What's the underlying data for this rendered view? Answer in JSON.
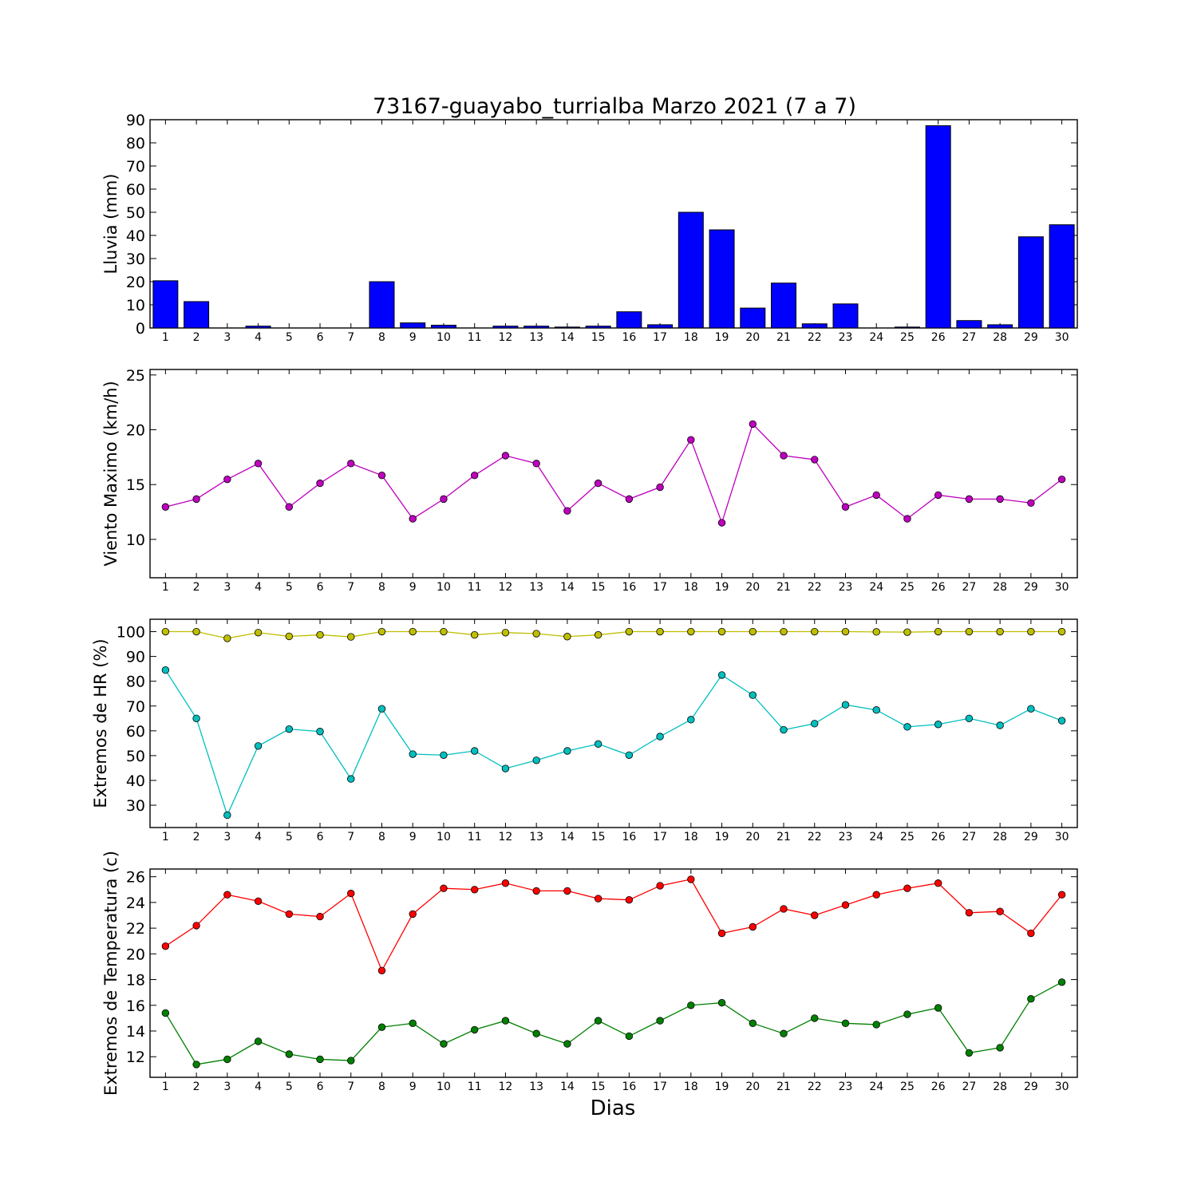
{
  "chart_data": [
    {
      "type": "bar",
      "title": "73167-guayabo_turrialba Marzo 2021  (7 a 7)",
      "xlabel": "",
      "ylabel": "Lluvia (mm)",
      "x": [
        1,
        2,
        3,
        4,
        5,
        6,
        7,
        8,
        9,
        10,
        11,
        12,
        13,
        14,
        15,
        16,
        17,
        18,
        19,
        20,
        21,
        22,
        23,
        24,
        25,
        26,
        27,
        28,
        29,
        30
      ],
      "x_ticks": [
        1,
        2,
        3,
        4,
        5,
        6,
        7,
        8,
        9,
        10,
        11,
        12,
        13,
        14,
        15,
        16,
        17,
        18,
        19,
        20,
        21,
        22,
        23,
        24,
        25,
        26,
        27,
        28,
        29,
        30
      ],
      "ylim": [
        0,
        90
      ],
      "y_ticks": [
        0,
        10,
        20,
        30,
        40,
        50,
        60,
        70,
        80,
        90
      ],
      "grid": false,
      "series": [
        {
          "color": "#0000ff",
          "values": [
            20.4,
            11.4,
            0,
            0.8,
            0,
            0,
            0,
            20,
            2.2,
            1.2,
            0,
            0.8,
            0.8,
            0.4,
            0.8,
            7,
            1.4,
            50,
            42.4,
            8.6,
            19.4,
            1.8,
            10.4,
            0,
            0.4,
            87.4,
            3.2,
            1.4,
            39.4,
            44.6
          ]
        }
      ]
    },
    {
      "type": "line",
      "title": "",
      "xlabel": "",
      "ylabel": "Viento Maximo (km/h)",
      "x": [
        1,
        2,
        3,
        4,
        5,
        6,
        7,
        8,
        9,
        10,
        11,
        12,
        13,
        14,
        15,
        16,
        17,
        18,
        19,
        20,
        21,
        22,
        23,
        24,
        25,
        26,
        27,
        28,
        29,
        30
      ],
      "x_ticks": [
        1,
        2,
        3,
        4,
        5,
        6,
        7,
        8,
        9,
        10,
        11,
        12,
        13,
        14,
        15,
        16,
        17,
        18,
        19,
        20,
        21,
        22,
        23,
        24,
        25,
        26,
        27,
        28,
        29,
        30
      ],
      "ylim": [
        6.5,
        25.5
      ],
      "y_ticks": [
        10,
        15,
        20,
        25
      ],
      "grid": false,
      "series": [
        {
          "color": "#bf00bf",
          "values": [
            12.96,
            13.68,
            15.48,
            16.92,
            12.96,
            15.12,
            16.92,
            15.84,
            11.88,
            13.68,
            15.84,
            17.64,
            16.92,
            12.6,
            15.12,
            13.68,
            14.76,
            19.08,
            11.52,
            20.52,
            17.64,
            17.28,
            12.96,
            14.04,
            11.88,
            14.04,
            13.68,
            13.68,
            13.32,
            15.48
          ]
        }
      ]
    },
    {
      "type": "line",
      "title": "",
      "xlabel": "",
      "ylabel": "Extremos de HR (%)",
      "x": [
        1,
        2,
        3,
        4,
        5,
        6,
        7,
        8,
        9,
        10,
        11,
        12,
        13,
        14,
        15,
        16,
        17,
        18,
        19,
        20,
        21,
        22,
        23,
        24,
        25,
        26,
        27,
        28,
        29,
        30
      ],
      "x_ticks": [
        1,
        2,
        3,
        4,
        5,
        6,
        7,
        8,
        9,
        10,
        11,
        12,
        13,
        14,
        15,
        16,
        17,
        18,
        19,
        20,
        21,
        22,
        23,
        24,
        25,
        26,
        27,
        28,
        29,
        30
      ],
      "ylim": [
        21,
        105
      ],
      "y_ticks": [
        30,
        40,
        50,
        60,
        70,
        80,
        90,
        100
      ],
      "grid": false,
      "series": [
        {
          "color": "#bfbf00",
          "values": [
            100,
            100,
            97.3,
            99.6,
            98.1,
            98.7,
            97.9,
            100,
            100,
            100,
            98.7,
            99.6,
            99.2,
            98,
            98.7,
            100,
            100,
            100,
            100,
            100,
            100,
            100,
            100,
            99.9,
            99.8,
            100,
            100,
            100,
            100,
            100
          ]
        },
        {
          "color": "#00bfbf",
          "values": [
            84.5,
            65,
            26,
            53.9,
            60.7,
            59.7,
            40.6,
            68.9,
            50.6,
            50.2,
            51.9,
            44.8,
            48.1,
            51.9,
            54.7,
            50.2,
            57.7,
            64.5,
            82.5,
            74.4,
            60.4,
            62.9,
            70.5,
            68.4,
            61.6,
            62.6,
            65,
            62.2,
            68.9,
            64.1
          ]
        }
      ]
    },
    {
      "type": "line",
      "title": "",
      "xlabel": "Dias",
      "ylabel": "Extremos de Temperatura (c)",
      "x": [
        1,
        2,
        3,
        4,
        5,
        6,
        7,
        8,
        9,
        10,
        11,
        12,
        13,
        14,
        15,
        16,
        17,
        18,
        19,
        20,
        21,
        22,
        23,
        24,
        25,
        26,
        27,
        28,
        29,
        30
      ],
      "x_ticks": [
        1,
        2,
        3,
        4,
        5,
        6,
        7,
        8,
        9,
        10,
        11,
        12,
        13,
        14,
        15,
        16,
        17,
        18,
        19,
        20,
        21,
        22,
        23,
        24,
        25,
        26,
        27,
        28,
        29,
        30
      ],
      "ylim": [
        10.4,
        26.6
      ],
      "y_ticks": [
        12,
        14,
        16,
        18,
        20,
        22,
        24,
        26
      ],
      "grid": false,
      "series": [
        {
          "color": "#ff0000",
          "values": [
            20.6,
            22.2,
            24.6,
            24.1,
            23.1,
            22.9,
            24.7,
            18.7,
            23.1,
            25.1,
            25,
            25.5,
            24.9,
            24.9,
            24.3,
            24.2,
            25.3,
            25.8,
            21.6,
            22.1,
            23.5,
            23,
            23.8,
            24.6,
            25.1,
            25.5,
            23.2,
            23.3,
            21.6,
            24.6
          ]
        },
        {
          "color": "#008000",
          "values": [
            15.4,
            11.4,
            11.8,
            13.2,
            12.2,
            11.8,
            11.7,
            14.3,
            14.6,
            13,
            14.1,
            14.8,
            13.8,
            13,
            14.8,
            13.6,
            14.8,
            16,
            16.2,
            14.6,
            13.8,
            15,
            14.6,
            14.5,
            15.3,
            15.8,
            12.3,
            12.7,
            16.5,
            17.8
          ]
        }
      ]
    }
  ]
}
